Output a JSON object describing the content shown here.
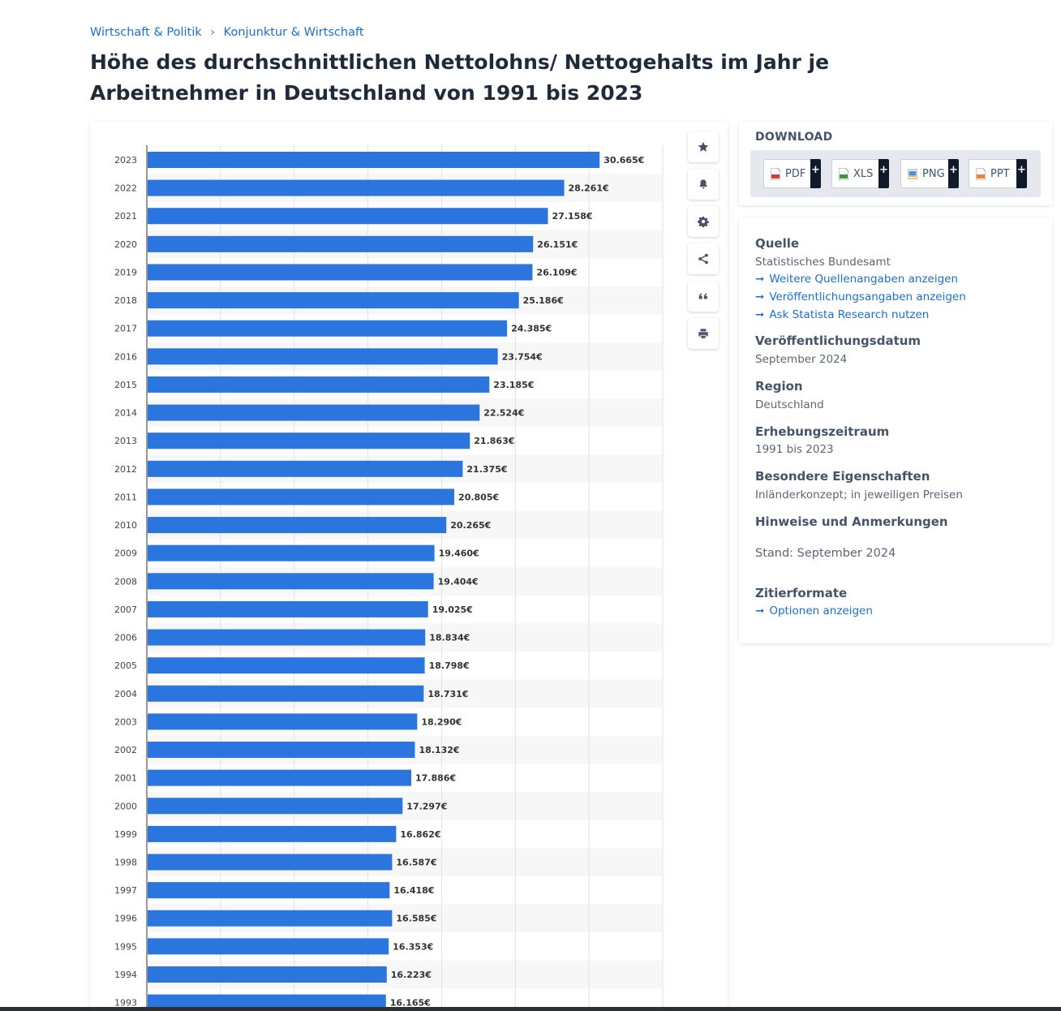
{
  "breadcrumb": {
    "item1": "Wirtschaft & Politik",
    "separator": "›",
    "item2": "Konjunktur & Wirtschaft"
  },
  "title": "Höhe des durchschnittlichen Nettolohns/ Nettogehalts im Jahr je Arbeitnehmer in Deutschland von 1991 bis 2023",
  "colors": {
    "bar": "#2b76de",
    "link": "#1a6fd1",
    "stripe": "#f7f7f7"
  },
  "chart_data": {
    "type": "bar",
    "orientation": "horizontal",
    "categories": [
      "2023",
      "2022",
      "2021",
      "2020",
      "2019",
      "2018",
      "2017",
      "2016",
      "2015",
      "2014",
      "2013",
      "2012",
      "2011",
      "2010",
      "2009",
      "2008",
      "2007",
      "2006",
      "2005",
      "2004",
      "2003",
      "2002",
      "2001",
      "2000",
      "1999",
      "1998",
      "1997",
      "1996",
      "1995",
      "1994",
      "1993"
    ],
    "values": [
      30665,
      28261,
      27158,
      26151,
      26109,
      25186,
      24385,
      23754,
      23185,
      22524,
      21863,
      21375,
      20805,
      20265,
      19460,
      19404,
      19025,
      18834,
      18798,
      18731,
      18290,
      18132,
      17886,
      17297,
      16862,
      16587,
      16418,
      16585,
      16353,
      16223,
      16165
    ],
    "value_labels": [
      "30.665€",
      "28.261€",
      "27.158€",
      "26.151€",
      "26.109€",
      "25.186€",
      "24.385€",
      "23.754€",
      "23.185€",
      "22.524€",
      "21.863€",
      "21.375€",
      "20.805€",
      "20.265€",
      "19.460€",
      "19.404€",
      "19.025€",
      "18.834€",
      "18.798€",
      "18.731€",
      "18.290€",
      "18.132€",
      "17.886€",
      "17.297€",
      "16.862€",
      "16.587€",
      "16.418€",
      "16.585€",
      "16.353€",
      "16.223€",
      "16.165€"
    ],
    "xlim": [
      0,
      35000
    ],
    "grid": true,
    "xlabel": "",
    "ylabel": ""
  },
  "tools": [
    "star-icon",
    "bell-icon",
    "gear-icon",
    "share-icon",
    "quote-icon",
    "print-icon"
  ],
  "download": {
    "heading": "DOWNLOAD",
    "buttons": [
      {
        "label": "PDF",
        "plus": "+",
        "icon": "pdf-file-icon"
      },
      {
        "label": "XLS",
        "plus": "+",
        "icon": "xls-file-icon"
      },
      {
        "label": "PNG",
        "plus": "+",
        "icon": "png-file-icon"
      },
      {
        "label": "PPT",
        "plus": "+",
        "icon": "ppt-file-icon"
      }
    ]
  },
  "info": {
    "source_heading": "Quelle",
    "source_value": "Statistisches Bundesamt",
    "link_arrow": "➞",
    "links": [
      "Weitere Quellenangaben anzeigen",
      "Veröffentlichungsangaben anzeigen",
      "Ask Statista Research nutzen"
    ],
    "pub_heading": "Veröffentlichungsdatum",
    "pub_value": "September 2024",
    "region_heading": "Region",
    "region_value": "Deutschland",
    "period_heading": "Erhebungszeitraum",
    "period_value": "1991 bis 2023",
    "special_heading": "Besondere Eigenschaften",
    "special_value": "Inländerkonzept; in jeweiligen Preisen",
    "notes_heading": "Hinweise und Anmerkungen",
    "notes_value": "Stand: September 2024",
    "cite_heading": "Zitierformate",
    "cite_link": "Optionen anzeigen"
  }
}
